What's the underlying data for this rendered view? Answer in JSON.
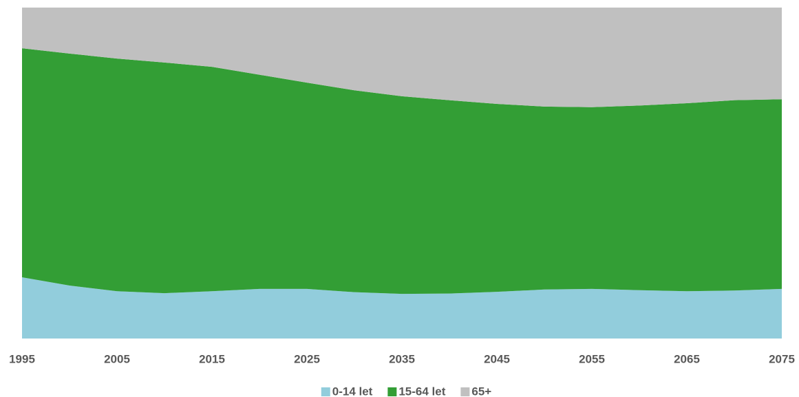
{
  "chart_data": {
    "type": "stacked_area_percent",
    "x": [
      1995,
      2000,
      2005,
      2010,
      2015,
      2020,
      2025,
      2030,
      2035,
      2040,
      2045,
      2050,
      2055,
      2060,
      2065,
      2070,
      2075
    ],
    "series": [
      {
        "name": "0-14 let",
        "color": "#92cddc",
        "values": [
          18.5,
          16.0,
          14.3,
          13.7,
          14.3,
          15.0,
          15.0,
          14.0,
          13.5,
          13.6,
          14.1,
          14.8,
          15.0,
          14.6,
          14.3,
          14.5,
          15.0
        ]
      },
      {
        "name": "15-64 let",
        "color": "#339e35",
        "values": [
          69.2,
          70.1,
          70.3,
          69.7,
          67.8,
          64.7,
          62.3,
          61.0,
          59.7,
          58.4,
          56.8,
          55.3,
          54.9,
          55.8,
          56.8,
          57.5,
          57.3
        ]
      },
      {
        "name": "65+",
        "color": "#c0c0c0",
        "values": [
          12.3,
          13.9,
          15.4,
          16.6,
          17.9,
          20.3,
          22.7,
          25.0,
          26.8,
          28.0,
          29.1,
          29.9,
          30.1,
          29.6,
          28.9,
          28.0,
          27.7
        ]
      }
    ],
    "xlim": [
      1995,
      2075
    ],
    "xticks": [
      1995,
      2005,
      2015,
      2025,
      2035,
      2045,
      2055,
      2065,
      2075
    ],
    "ylim": [
      0,
      100
    ],
    "legend": "bottom"
  }
}
